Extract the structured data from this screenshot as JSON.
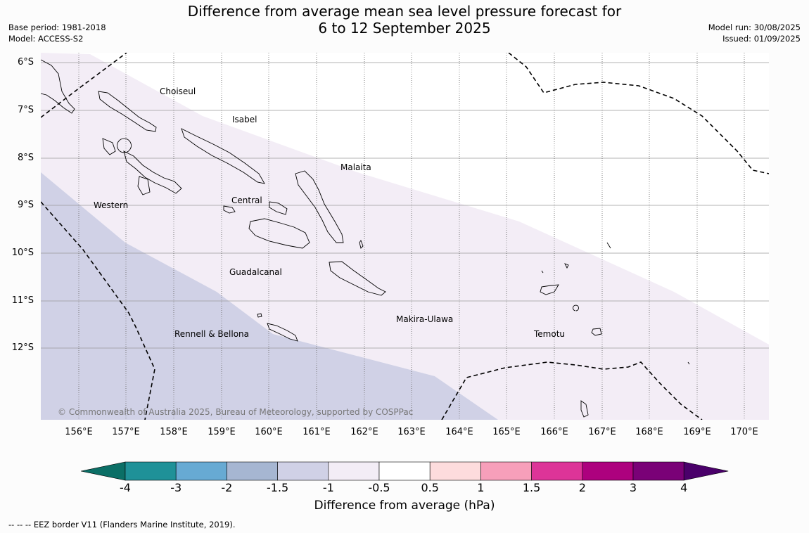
{
  "title": {
    "line1": "Difference from average mean sea level pressure forecast for",
    "line2": "6 to 12 September 2025"
  },
  "meta_left": {
    "base_period": "Base period: 1981-2018",
    "model": "Model: ACCESS-S2"
  },
  "meta_right": {
    "model_run": "Model run: 30/08/2025",
    "issued": "Issued: 01/09/2025"
  },
  "map": {
    "lat_labels": [
      "6°S",
      "7°S",
      "8°S",
      "9°S",
      "10°S",
      "11°S",
      "12°S"
    ],
    "lon_labels": [
      "156°E",
      "157°E",
      "158°E",
      "159°E",
      "160°E",
      "161°E",
      "162°E",
      "163°E",
      "164°E",
      "165°E",
      "166°E",
      "167°E",
      "168°E",
      "169°E",
      "170°E"
    ],
    "regions": [
      "Choiseul",
      "Isabel",
      "Malaita",
      "Western",
      "Central",
      "Guadalcanal",
      "Makira-Ulawa",
      "Rennell & Bellona",
      "Temotu"
    ],
    "copyright": "© Commonwealth of Australia 2025, Bureau of Meteorology, supported by COSPPac",
    "anomaly_fill_colors": {
      "band_-1.5_to_-1": "#d0d1e6",
      "band_-1_to_-0.5": "#f3edf6"
    }
  },
  "colorbar": {
    "ticks": [
      "-4",
      "-3",
      "-2",
      "-1.5",
      "-1",
      "-0.5",
      "0.5",
      "1",
      "1.5",
      "2",
      "3",
      "4"
    ],
    "colors": [
      "#0b6f66",
      "#1f9198",
      "#67aad3",
      "#a6b6d2",
      "#d0d1e6",
      "#f3edf6",
      "#ffffff",
      "#fddcdd",
      "#f79fba",
      "#dd3498",
      "#ad017e",
      "#7a0177",
      "#4a006a"
    ],
    "label": "Difference from average (hPa)"
  },
  "footer": "--  --  -- EEZ border V11 (Flanders Marine Institute, 2019)."
}
